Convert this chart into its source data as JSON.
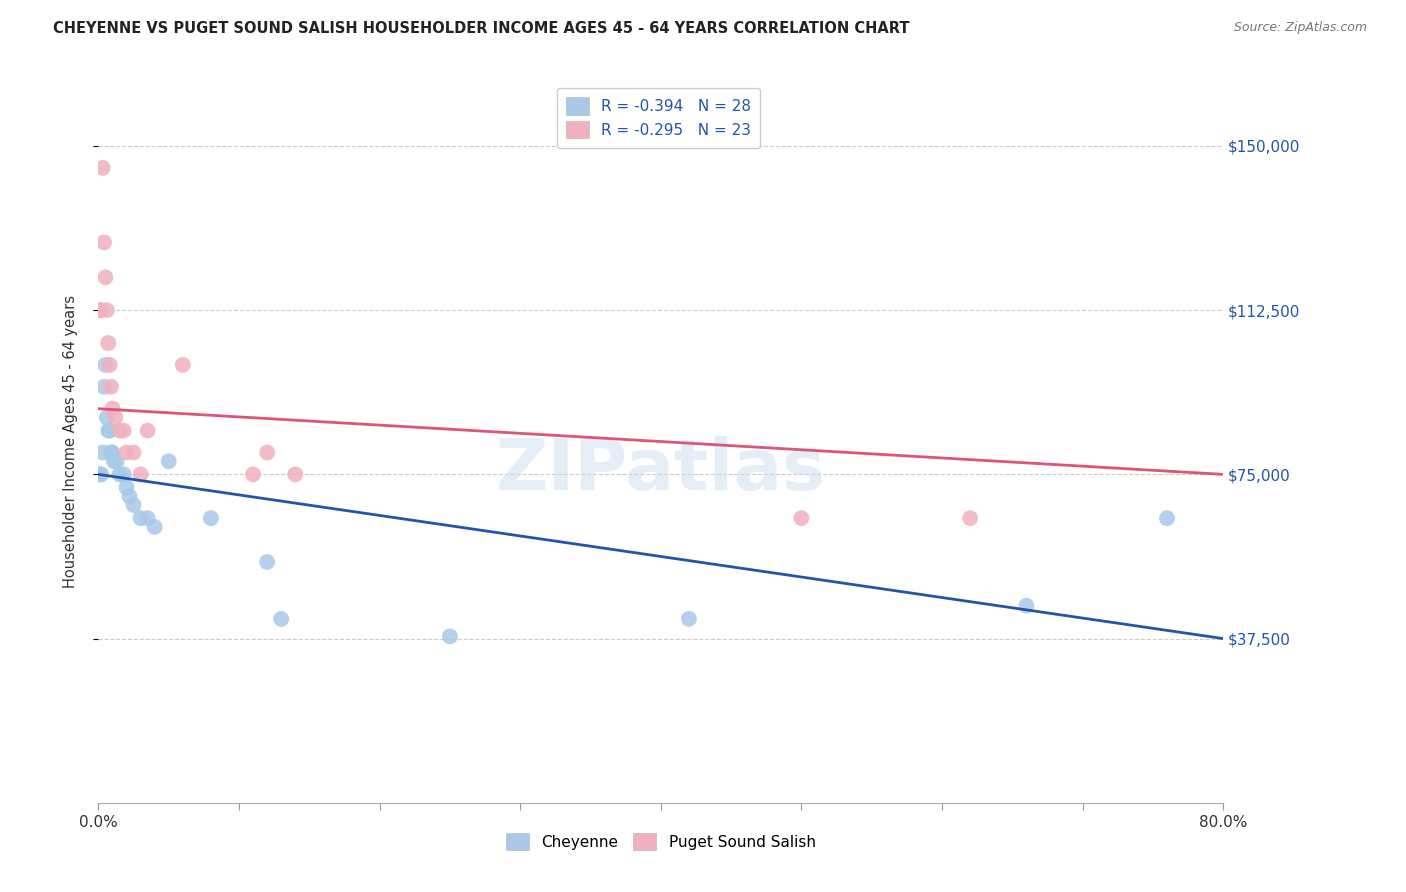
{
  "title": "CHEYENNE VS PUGET SOUND SALISH HOUSEHOLDER INCOME AGES 45 - 64 YEARS CORRELATION CHART",
  "source": "Source: ZipAtlas.com",
  "ylabel": "Householder Income Ages 45 - 64 years",
  "ytick_values": [
    37500,
    75000,
    112500,
    150000
  ],
  "xlim": [
    0.0,
    0.8
  ],
  "ylim": [
    0,
    165000
  ],
  "legend_label1": "Cheyenne",
  "legend_label2": "Puget Sound Salish",
  "R1": -0.394,
  "N1": 28,
  "R2": -0.295,
  "N2": 23,
  "color1": "#a8c8e8",
  "color2": "#f0b0c0",
  "trendline1_color": "#2255aa",
  "trendline2_color": "#dd5577",
  "watermark": "ZIPatlas",
  "cheyenne_x": [
    0.001,
    0.002,
    0.003,
    0.004,
    0.005,
    0.006,
    0.007,
    0.008,
    0.009,
    0.01,
    0.011,
    0.013,
    0.015,
    0.018,
    0.02,
    0.022,
    0.025,
    0.03,
    0.035,
    0.04,
    0.05,
    0.08,
    0.12,
    0.13,
    0.25,
    0.42,
    0.66,
    0.76
  ],
  "cheyenne_y": [
    75000,
    75000,
    80000,
    95000,
    100000,
    88000,
    85000,
    85000,
    80000,
    80000,
    78000,
    78000,
    75000,
    75000,
    72000,
    70000,
    68000,
    65000,
    65000,
    63000,
    78000,
    65000,
    55000,
    42000,
    38000,
    42000,
    45000,
    65000
  ],
  "salish_x": [
    0.001,
    0.002,
    0.003,
    0.004,
    0.005,
    0.006,
    0.007,
    0.008,
    0.009,
    0.01,
    0.012,
    0.015,
    0.018,
    0.02,
    0.025,
    0.03,
    0.035,
    0.06,
    0.11,
    0.12,
    0.14,
    0.5,
    0.62
  ],
  "salish_y": [
    112500,
    112500,
    145000,
    128000,
    120000,
    112500,
    105000,
    100000,
    95000,
    90000,
    88000,
    85000,
    85000,
    80000,
    80000,
    75000,
    85000,
    100000,
    75000,
    80000,
    75000,
    65000,
    65000
  ],
  "marker_size": 130,
  "grid_color": "#cccccc",
  "title_color": "#222222",
  "source_color": "#777777",
  "ytick_label_color": "#2255aa",
  "trendline1_y0": 75000,
  "trendline1_y1": 37500,
  "trendline2_y0": 90000,
  "trendline2_y1": 75000
}
